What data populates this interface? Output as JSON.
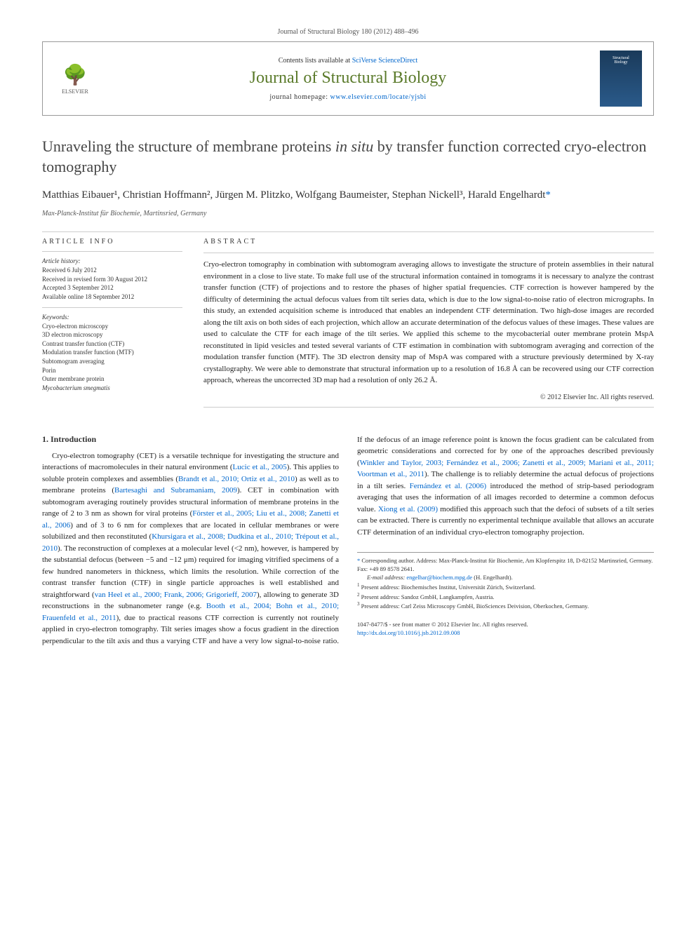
{
  "citation": "Journal of Structural Biology 180 (2012) 488–496",
  "header": {
    "elsevier": "ELSEVIER",
    "contents_prefix": "Contents lists available at ",
    "contents_link": "SciVerse ScienceDirect",
    "journal_title": "Journal of Structural Biology",
    "homepage_prefix": "journal homepage: ",
    "homepage_link": "www.elsevier.com/locate/yjsbi",
    "thumb_line1": "Structural",
    "thumb_line2": "Biology"
  },
  "title": {
    "pre": "Unraveling the structure of membrane proteins ",
    "italic": "in situ",
    "post": " by transfer function corrected cryo-electron tomography"
  },
  "authors": "Matthias Eibauer¹, Christian Hoffmann², Jürgen M. Plitzko, Wolfgang Baumeister, Stephan Nickell³, Harald Engelhardt",
  "affiliation": "Max-Planck-Institut für Biochemie, Martinsried, Germany",
  "article_info": {
    "heading": "ARTICLE INFO",
    "history_heading": "Article history:",
    "received": "Received 6 July 2012",
    "revised": "Received in revised form 30 August 2012",
    "accepted": "Accepted 3 September 2012",
    "online": "Available online 18 September 2012",
    "keywords_heading": "Keywords:",
    "keywords": [
      "Cryo-electron microscopy",
      "3D electron microscopy",
      "Contrast transfer function (CTF)",
      "Modulation transfer function (MTF)",
      "Subtomogram averaging",
      "Porin",
      "Outer membrane protein",
      "Mycobacterium smegmatis"
    ]
  },
  "abstract": {
    "heading": "ABSTRACT",
    "text": "Cryo-electron tomography in combination with subtomogram averaging allows to investigate the structure of protein assemblies in their natural environment in a close to live state. To make full use of the structural information contained in tomograms it is necessary to analyze the contrast transfer function (CTF) of projections and to restore the phases of higher spatial frequencies. CTF correction is however hampered by the difficulty of determining the actual defocus values from tilt series data, which is due to the low signal-to-noise ratio of electron micrographs. In this study, an extended acquisition scheme is introduced that enables an independent CTF determination. Two high-dose images are recorded along the tilt axis on both sides of each projection, which allow an accurate determination of the defocus values of these images. These values are used to calculate the CTF for each image of the tilt series. We applied this scheme to the mycobacterial outer membrane protein MspA reconstituted in lipid vesicles and tested several variants of CTF estimation in combination with subtomogram averaging and correction of the modulation transfer function (MTF). The 3D electron density map of MspA was compared with a structure previously determined by X-ray crystallography. We were able to demonstrate that structural information up to a resolution of 16.8 Å can be recovered using our CTF correction approach, whereas the uncorrected 3D map had a resolution of only 26.2 Å.",
    "copyright": "© 2012 Elsevier Inc. All rights reserved."
  },
  "intro": {
    "heading": "1. Introduction",
    "p1_pre": "Cryo-electron tomography (CET) is a versatile technique for investigating the structure and interactions of macromolecules in their natural environment (",
    "p1_link1": "Lucic et al., 2005",
    "p1_mid1": "). This applies to soluble protein complexes and assemblies (",
    "p1_link2": "Brandt et al., 2010; Ortiz et al., 2010",
    "p1_mid2": ") as well as to membrane proteins (",
    "p1_link3": "Bartesaghi and Subramaniam, 2009",
    "p1_mid3": "). CET in combination with subtomogram averaging routinely provides structural information of membrane proteins in the range of 2 to 3 nm as shown for viral proteins (",
    "p1_link4": "Förster et al., 2005; Liu et al., 2008; Zanetti et al., 2006",
    "p1_mid4": ") and of 3 to 6 nm for complexes that are located in cellular membranes or were solubilized and then reconstituted (",
    "p1_link5": "Khursigara et al., 2008; Dudkina et al., 2010; Trépout et al., 2010",
    "p1_mid5": "). The reconstruction of complexes at a molecular level (<2 nm), however, is hampered by the substantial defocus (between −5 and −12 μm) required for imaging vitrified specimens of a few hundred nanometers in thickness, which limits the resolution. While correction of the contrast transfer function (CTF) in single particle approaches is well established and straightforward (",
    "p1_link6": "van Heel et al., 2000; Frank, 2006; Grigorieff, 2007",
    "p1_mid6": "), allowing to generate 3D reconstructions in the subnanometer range (e.g. ",
    "p1_link7": "Booth et al., 2004; Bohn et al., 2010; Frauenfeld et al., 2011",
    "p1_mid7": "), due to practical reasons CTF correction is currently not routinely applied in cryo-electron tomography. Tilt series images show a focus gradient in the direction perpendicular to the tilt axis and thus a varying CTF and have a very low signal-to-noise ratio. If the defocus of an image reference point is known the focus gradient can be calculated from geometric considerations and corrected for by one of the approaches described previously (",
    "p1_link8": "Winkler and Taylor, 2003; Fernández et al., 2006; Zanetti et al., 2009; Mariani et al., 2011; Voortman et al., 2011",
    "p1_mid8": "). The challenge is to reliably determine the actual defocus of projections in a tilt series. ",
    "p1_link9": "Fernández et al. (2006)",
    "p1_mid9": " introduced the method of strip-based periodogram averaging that uses the information of all images recorded to determine a common defocus value. ",
    "p1_link10": "Xiong et al. (2009)",
    "p1_mid10": " modified this approach such that the defoci of subsets of a tilt series can be extracted. There is currently no experimental technique available that allows an accurate CTF determination of an individual cryo-electron tomography projection."
  },
  "footnotes": {
    "corr_star": "*",
    "corr_text": " Corresponding author. Address: Max-Planck-Institut für Biochemie, Am Klopferspitz 18, D-82152 Martinsried, Germany. Fax: +49 89 8578 2641.",
    "email_label": "E-mail address: ",
    "email": "engelhar@biochem.mpg.de",
    "email_suffix": " (H. Engelhardt).",
    "fn1": "Present address: Biochemisches Institut, Universität Zürich, Switzerland.",
    "fn2": "Present address: Sandoz GmbH, Langkampfen, Austria.",
    "fn3": "Present address: Carl Zeiss Microscopy GmbH, BioSciences Deivision, Oberkochen, Germany."
  },
  "bottom": {
    "issn": "1047-8477/$ - see front matter © 2012 Elsevier Inc. All rights reserved.",
    "doi_prefix": "http://dx.doi.org/",
    "doi": "10.1016/j.jsb.2012.09.008"
  }
}
